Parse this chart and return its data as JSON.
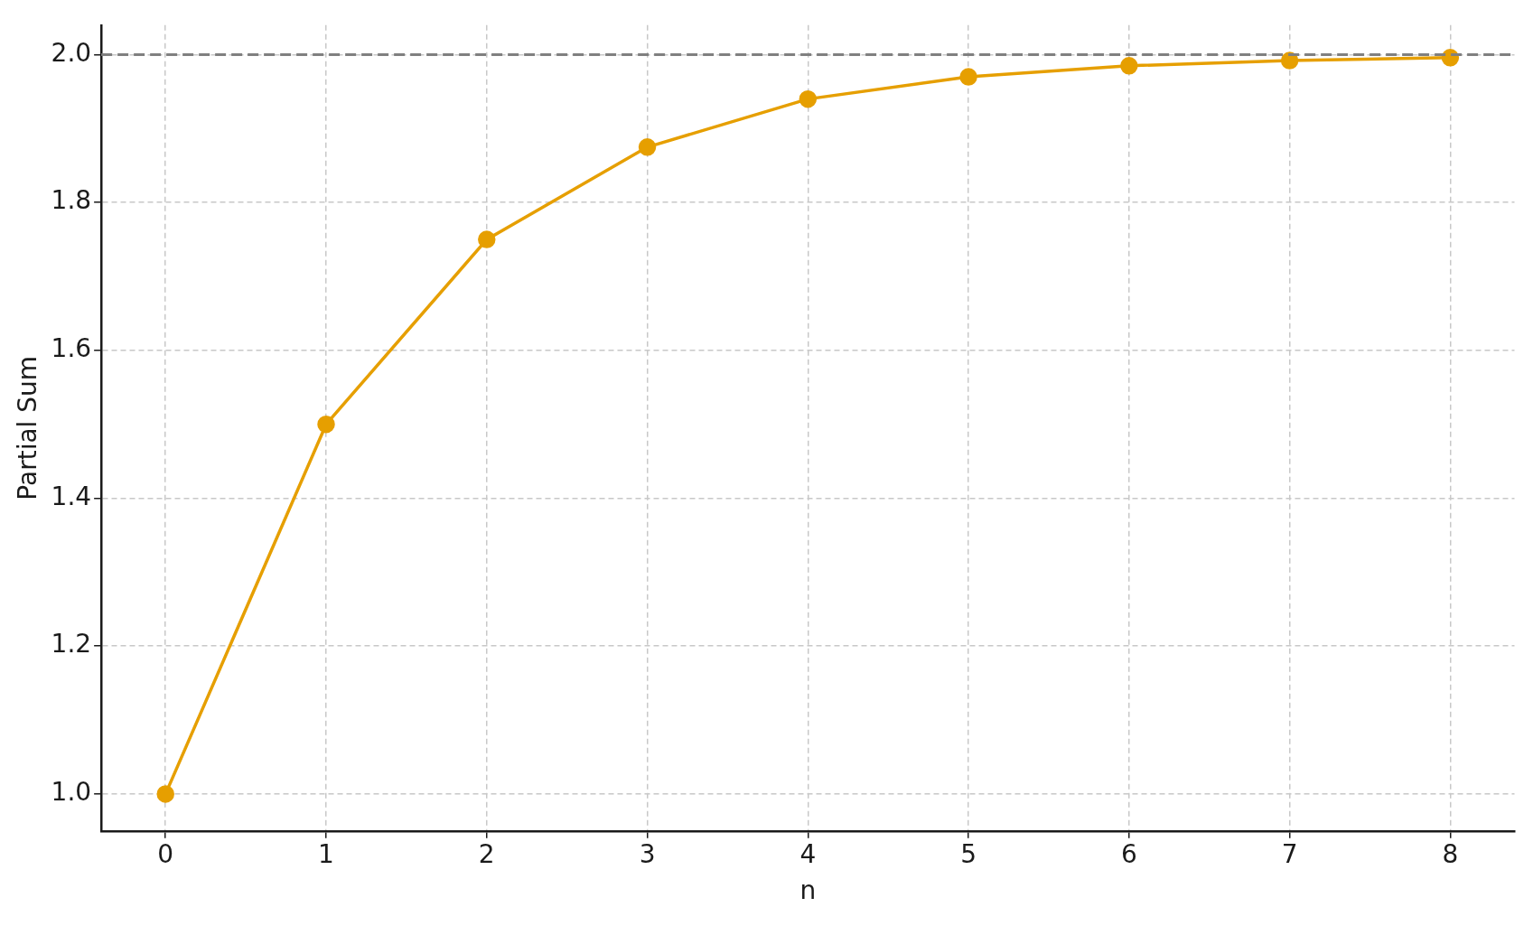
{
  "chart_data": {
    "type": "line",
    "xlabel": "n",
    "ylabel": "Partial Sum",
    "x": [
      0,
      1,
      2,
      3,
      4,
      5,
      6,
      7,
      8
    ],
    "series": [
      {
        "color": "#e69f00",
        "values": [
          1.0,
          1.5,
          1.75,
          1.875,
          1.94,
          1.97,
          1.985,
          1.992,
          1.996
        ]
      }
    ],
    "xlim": [
      -0.4,
      8.4
    ],
    "xticks": [
      0,
      1,
      2,
      3,
      4,
      5,
      6,
      7,
      8
    ],
    "ylim": [
      0.95,
      2.04
    ],
    "yticks": [
      {
        "value": 1,
        "label": "1.0"
      },
      1.2,
      1.4,
      1.6,
      1.8,
      {
        "value": 2,
        "label": "2.0"
      }
    ],
    "ref_lines": [
      {
        "axis": "y",
        "value": 2.0,
        "color": "#808080",
        "line_style": "dashed"
      }
    ],
    "grid": true,
    "marker": "circle",
    "line_style": "solid",
    "legend": false
  }
}
